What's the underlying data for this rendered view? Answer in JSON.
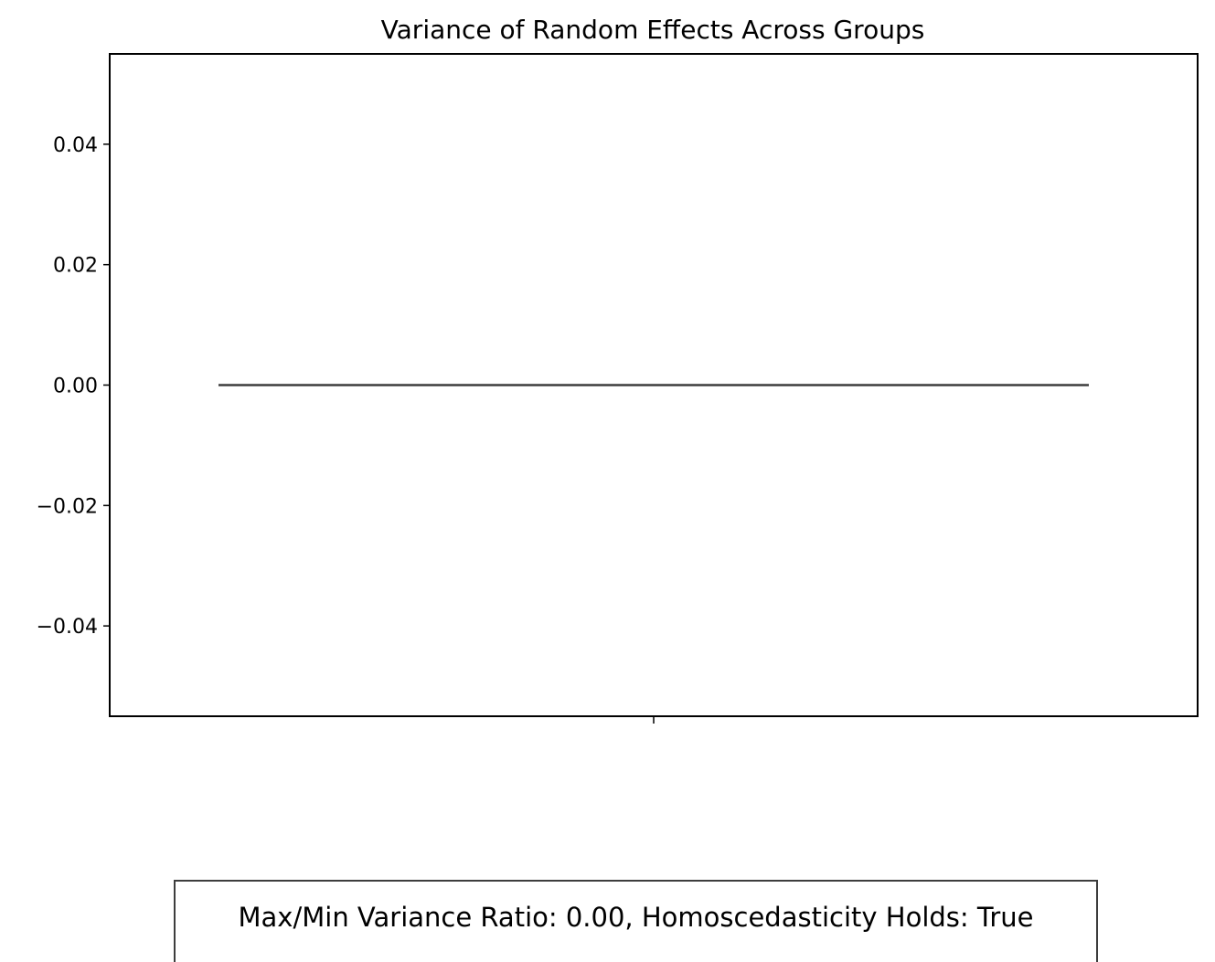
{
  "chart_data": {
    "type": "line",
    "title": "Variance of Random Effects Across Groups",
    "xlabel": "",
    "ylabel": "",
    "ylim": [
      -0.055,
      0.055
    ],
    "yticks": [
      0.04,
      0.02,
      0.0,
      -0.02,
      -0.04
    ],
    "ytick_labels": [
      "0.04",
      "0.02",
      "0.00",
      "−0.02",
      "−0.04"
    ],
    "xticks": [
      ""
    ],
    "grid": false,
    "series": [
      {
        "color": "#3d3d3d",
        "x": [
          0,
          1
        ],
        "y": [
          0.0,
          0.0
        ]
      }
    ]
  },
  "annotation": {
    "text": "Max/Min Variance Ratio: 0.00, Homoscedasticity Holds: True"
  }
}
